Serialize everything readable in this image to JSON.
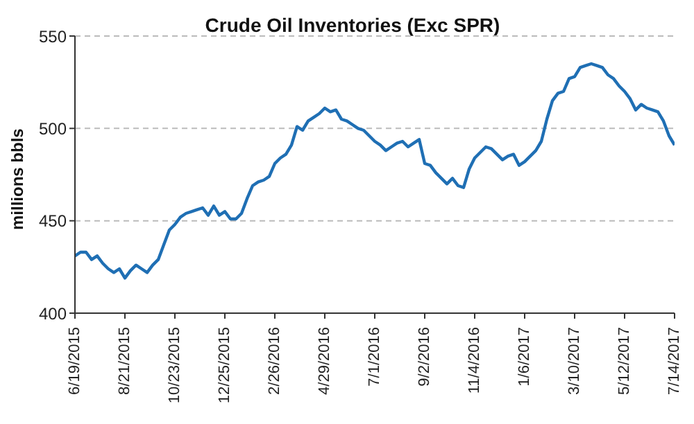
{
  "chart_data": {
    "type": "line",
    "title": "Crude Oil Inventories (Exc SPR)",
    "ylabel": "millions bbls",
    "x": [
      "2015-06-19",
      "2015-06-26",
      "2015-07-03",
      "2015-07-10",
      "2015-07-17",
      "2015-07-24",
      "2015-07-31",
      "2015-08-07",
      "2015-08-14",
      "2015-08-21",
      "2015-08-28",
      "2015-09-04",
      "2015-09-11",
      "2015-09-18",
      "2015-09-25",
      "2015-10-02",
      "2015-10-09",
      "2015-10-16",
      "2015-10-23",
      "2015-10-30",
      "2015-11-06",
      "2015-11-13",
      "2015-11-20",
      "2015-11-27",
      "2015-12-04",
      "2015-12-11",
      "2015-12-18",
      "2015-12-25",
      "2016-01-01",
      "2016-01-08",
      "2016-01-15",
      "2016-01-22",
      "2016-01-29",
      "2016-02-05",
      "2016-02-12",
      "2016-02-19",
      "2016-02-26",
      "2016-03-04",
      "2016-03-11",
      "2016-03-18",
      "2016-03-25",
      "2016-04-01",
      "2016-04-08",
      "2016-04-15",
      "2016-04-22",
      "2016-04-29",
      "2016-05-06",
      "2016-05-13",
      "2016-05-20",
      "2016-05-27",
      "2016-06-03",
      "2016-06-10",
      "2016-06-17",
      "2016-06-24",
      "2016-07-01",
      "2016-07-08",
      "2016-07-15",
      "2016-07-22",
      "2016-07-29",
      "2016-08-05",
      "2016-08-12",
      "2016-08-19",
      "2016-08-26",
      "2016-09-02",
      "2016-09-09",
      "2016-09-16",
      "2016-09-23",
      "2016-09-30",
      "2016-10-07",
      "2016-10-14",
      "2016-10-21",
      "2016-10-28",
      "2016-11-04",
      "2016-11-11",
      "2016-11-18",
      "2016-11-25",
      "2016-12-02",
      "2016-12-09",
      "2016-12-16",
      "2016-12-23",
      "2016-12-30",
      "2017-01-06",
      "2017-01-13",
      "2017-01-20",
      "2017-01-27",
      "2017-02-03",
      "2017-02-10",
      "2017-02-17",
      "2017-02-24",
      "2017-03-03",
      "2017-03-10",
      "2017-03-17",
      "2017-03-24",
      "2017-03-31",
      "2017-04-07",
      "2017-04-14",
      "2017-04-21",
      "2017-04-28",
      "2017-05-05",
      "2017-05-12",
      "2017-05-19",
      "2017-05-26",
      "2017-06-02",
      "2017-06-09",
      "2017-06-16",
      "2017-06-23",
      "2017-06-30",
      "2017-07-07",
      "2017-07-14"
    ],
    "series": [
      {
        "color": "#1f6fb4",
        "values": [
          431,
          433,
          433,
          429,
          431,
          427,
          424,
          422,
          424,
          419,
          423,
          426,
          424,
          422,
          426,
          429,
          437,
          445,
          448,
          452,
          454,
          455,
          456,
          457,
          453,
          458,
          453,
          455,
          451,
          451,
          454,
          462,
          469,
          471,
          472,
          474,
          481,
          484,
          486,
          491,
          501,
          499,
          504,
          506,
          508,
          511,
          509,
          510,
          505,
          504,
          502,
          500,
          499,
          496,
          493,
          491,
          488,
          490,
          492,
          493,
          490,
          492,
          494,
          481,
          480,
          476,
          473,
          470,
          473,
          469,
          468,
          478,
          484,
          487,
          490,
          489,
          486,
          483,
          485,
          486,
          480,
          482,
          485,
          488,
          493,
          505,
          515,
          519,
          520,
          527,
          528,
          533,
          534,
          535,
          534,
          533,
          529,
          527,
          523,
          520,
          516,
          510,
          513,
          511,
          510,
          509,
          504,
          496,
          491
        ]
      }
    ],
    "xlim": [
      "2015-06-19",
      "2017-07-14"
    ],
    "xticks": [
      {
        "value": "2015-06-19",
        "label": "6/19/2015"
      },
      {
        "value": "2015-08-21",
        "label": "8/21/2015"
      },
      {
        "value": "2015-10-23",
        "label": "10/23/2015"
      },
      {
        "value": "2015-12-25",
        "label": "12/25/2015"
      },
      {
        "value": "2016-02-26",
        "label": "2/26/2016"
      },
      {
        "value": "2016-04-29",
        "label": "4/29/2016"
      },
      {
        "value": "2016-07-01",
        "label": "7/1/2016"
      },
      {
        "value": "2016-09-02",
        "label": "9/2/2016"
      },
      {
        "value": "2016-11-04",
        "label": "11/4/2016"
      },
      {
        "value": "2017-01-06",
        "label": "1/6/2017"
      },
      {
        "value": "2017-03-10",
        "label": "3/10/2017"
      },
      {
        "value": "2017-05-12",
        "label": "5/12/2017"
      },
      {
        "value": "2017-07-14",
        "label": "7/14/2017"
      }
    ],
    "ylim": [
      400,
      550
    ],
    "yticks": [
      400,
      450,
      500,
      550
    ],
    "grid": "y",
    "legend": false,
    "marker": "none",
    "line_style": "solid"
  }
}
